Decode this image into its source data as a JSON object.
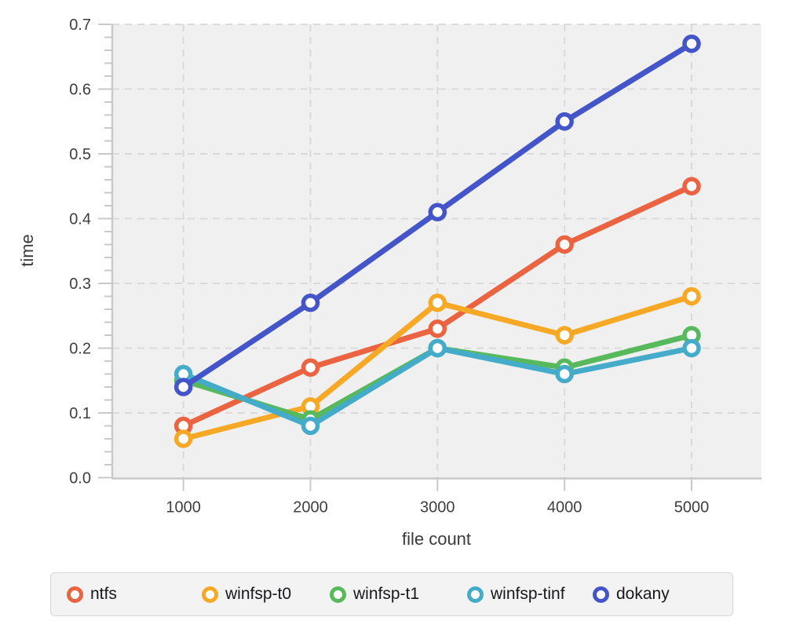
{
  "chart_data": {
    "type": "line",
    "title": "",
    "xlabel": "file count",
    "ylabel": "time",
    "x": [
      1000,
      2000,
      3000,
      4000,
      5000
    ],
    "x_tick_labels": [
      "1000",
      "2000",
      "3000",
      "4000",
      "5000"
    ],
    "y_ticks": [
      0.0,
      0.1,
      0.2,
      0.3,
      0.4,
      0.5,
      0.6,
      0.7
    ],
    "y_tick_labels": [
      "0.0",
      "0.1",
      "0.2",
      "0.3",
      "0.4",
      "0.5",
      "0.6",
      "0.7"
    ],
    "y_minor_tick_step": 0.02,
    "ylim": [
      0,
      0.7
    ],
    "xlim": [
      440,
      5550
    ],
    "grid": true,
    "grid_style": "dashed",
    "legend_position": "bottom",
    "marker": "open-circle",
    "series": [
      {
        "name": "ntfs",
        "color": "#eb6341",
        "values": [
          0.08,
          0.17,
          0.23,
          0.36,
          0.45
        ]
      },
      {
        "name": "winfsp-t0",
        "color": "#f7a825",
        "values": [
          0.06,
          0.11,
          0.27,
          0.22,
          0.28
        ]
      },
      {
        "name": "winfsp-t1",
        "color": "#58b85c",
        "values": [
          0.15,
          0.09,
          0.2,
          0.17,
          0.22
        ]
      },
      {
        "name": "winfsp-tinf",
        "color": "#44abc9",
        "values": [
          0.16,
          0.08,
          0.2,
          0.16,
          0.2
        ]
      },
      {
        "name": "dokany",
        "color": "#4355c8",
        "values": [
          0.14,
          0.27,
          0.41,
          0.55,
          0.67
        ]
      }
    ]
  },
  "colors": {
    "page_bg": "#ffffff",
    "plot_bg": "#f0f0f1",
    "grid": "#d7d7d7",
    "axis": "#c9c9c9",
    "tick_label": "#3e3e3e",
    "axis_label": "#3a3a3a",
    "marker_fill": "#ffffff",
    "legend_bg": "#f3f3f4",
    "legend_border": "#d6d6d6",
    "legend_text": "#17171c"
  }
}
